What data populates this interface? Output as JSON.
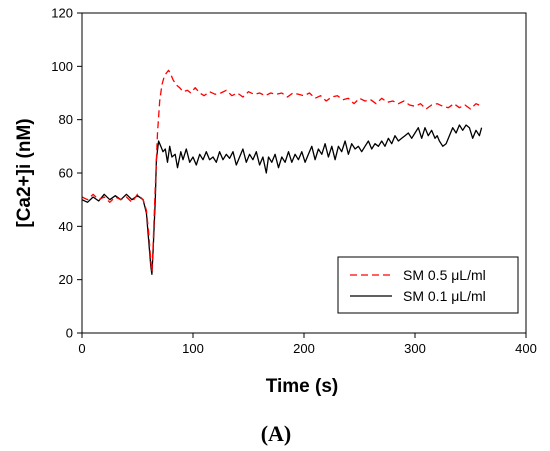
{
  "chart_data": {
    "type": "line",
    "xlabel": "Time (s)",
    "ylabel": "[Ca2+]i (nM)",
    "xlim": [
      0,
      400
    ],
    "ylim": [
      0,
      120
    ],
    "xticks": [
      0,
      100,
      200,
      300,
      400
    ],
    "yticks": [
      0,
      20,
      40,
      60,
      80,
      100,
      120
    ],
    "grid": false,
    "legend_position": "bottom-right",
    "panel_label": "(A)",
    "series": [
      {
        "name": "SM 0.5 μL/ml",
        "color": "#ff0000",
        "dash": "dashed",
        "points": [
          [
            0,
            51
          ],
          [
            5,
            50
          ],
          [
            10,
            52
          ],
          [
            15,
            50
          ],
          [
            20,
            51
          ],
          [
            25,
            49
          ],
          [
            30,
            51
          ],
          [
            35,
            50
          ],
          [
            40,
            51
          ],
          [
            45,
            49
          ],
          [
            50,
            52
          ],
          [
            55,
            50
          ],
          [
            58,
            46
          ],
          [
            60,
            38
          ],
          [
            62,
            27
          ],
          [
            63,
            23
          ],
          [
            64,
            32
          ],
          [
            66,
            55
          ],
          [
            68,
            75
          ],
          [
            70,
            87
          ],
          [
            72,
            93
          ],
          [
            74,
            96
          ],
          [
            76,
            97.5
          ],
          [
            78,
            98.5
          ],
          [
            80,
            97
          ],
          [
            82,
            95
          ],
          [
            85,
            93
          ],
          [
            88,
            92
          ],
          [
            91,
            90.5
          ],
          [
            95,
            91
          ],
          [
            98,
            90
          ],
          [
            102,
            92
          ],
          [
            106,
            90
          ],
          [
            110,
            89
          ],
          [
            115,
            90.5
          ],
          [
            120,
            89.5
          ],
          [
            125,
            90
          ],
          [
            130,
            91
          ],
          [
            135,
            89
          ],
          [
            140,
            90
          ],
          [
            145,
            88.5
          ],
          [
            150,
            90.5
          ],
          [
            155,
            89.5
          ],
          [
            160,
            90
          ],
          [
            165,
            89
          ],
          [
            170,
            90
          ],
          [
            175,
            89.5
          ],
          [
            180,
            90
          ],
          [
            185,
            88.5
          ],
          [
            190,
            90
          ],
          [
            195,
            89.5
          ],
          [
            200,
            89
          ],
          [
            205,
            90
          ],
          [
            210,
            88
          ],
          [
            215,
            89
          ],
          [
            220,
            87
          ],
          [
            225,
            88.5
          ],
          [
            230,
            89
          ],
          [
            235,
            87.5
          ],
          [
            240,
            88
          ],
          [
            245,
            86
          ],
          [
            250,
            88
          ],
          [
            255,
            87
          ],
          [
            260,
            87.5
          ],
          [
            265,
            86
          ],
          [
            270,
            88
          ],
          [
            275,
            86.5
          ],
          [
            280,
            87
          ],
          [
            285,
            86
          ],
          [
            290,
            87
          ],
          [
            295,
            85.5
          ],
          [
            300,
            85
          ],
          [
            305,
            86
          ],
          [
            310,
            84
          ],
          [
            315,
            85.5
          ],
          [
            320,
            86
          ],
          [
            325,
            85
          ],
          [
            330,
            84.5
          ],
          [
            335,
            86
          ],
          [
            340,
            84.5
          ],
          [
            345,
            85.5
          ],
          [
            350,
            84
          ],
          [
            355,
            86
          ],
          [
            360,
            85
          ]
        ]
      },
      {
        "name": "SM 0.1 μL/ml",
        "color": "#000000",
        "dash": "solid",
        "points": [
          [
            0,
            50
          ],
          [
            5,
            49
          ],
          [
            10,
            51
          ],
          [
            15,
            49.5
          ],
          [
            20,
            52
          ],
          [
            25,
            50
          ],
          [
            30,
            51.5
          ],
          [
            35,
            50
          ],
          [
            40,
            52
          ],
          [
            45,
            50
          ],
          [
            50,
            51.5
          ],
          [
            55,
            50
          ],
          [
            58,
            45
          ],
          [
            60,
            35
          ],
          [
            62,
            25
          ],
          [
            63,
            22
          ],
          [
            64,
            30
          ],
          [
            66,
            50
          ],
          [
            67,
            65
          ],
          [
            69,
            72
          ],
          [
            71,
            70
          ],
          [
            73,
            68
          ],
          [
            75,
            69
          ],
          [
            77,
            64
          ],
          [
            79,
            70
          ],
          [
            81,
            66
          ],
          [
            84,
            67
          ],
          [
            86,
            62
          ],
          [
            89,
            68
          ],
          [
            91,
            65
          ],
          [
            94,
            69
          ],
          [
            97,
            64
          ],
          [
            100,
            66
          ],
          [
            103,
            63
          ],
          [
            106,
            67
          ],
          [
            109,
            65
          ],
          [
            112,
            68
          ],
          [
            115,
            65
          ],
          [
            118,
            66
          ],
          [
            121,
            64
          ],
          [
            124,
            68
          ],
          [
            127,
            65
          ],
          [
            130,
            67
          ],
          [
            133,
            65.5
          ],
          [
            136,
            68
          ],
          [
            139,
            63
          ],
          [
            142,
            66
          ],
          [
            145,
            69
          ],
          [
            148,
            64
          ],
          [
            151,
            67
          ],
          [
            154,
            65
          ],
          [
            157,
            68
          ],
          [
            160,
            63
          ],
          [
            163,
            66
          ],
          [
            166,
            60
          ],
          [
            168,
            66
          ],
          [
            171,
            64
          ],
          [
            174,
            67
          ],
          [
            177,
            62
          ],
          [
            180,
            66
          ],
          [
            183,
            64
          ],
          [
            186,
            68
          ],
          [
            189,
            64
          ],
          [
            192,
            67
          ],
          [
            195,
            65
          ],
          [
            198,
            68
          ],
          [
            201,
            64
          ],
          [
            204,
            67
          ],
          [
            207,
            70
          ],
          [
            210,
            65
          ],
          [
            213,
            69
          ],
          [
            216,
            67
          ],
          [
            219,
            71
          ],
          [
            222,
            66
          ],
          [
            225,
            70
          ],
          [
            228,
            65
          ],
          [
            231,
            70
          ],
          [
            234,
            68
          ],
          [
            237,
            72
          ],
          [
            240,
            67
          ],
          [
            243,
            71
          ],
          [
            246,
            69
          ],
          [
            249,
            70
          ],
          [
            252,
            68
          ],
          [
            255,
            70
          ],
          [
            258,
            72
          ],
          [
            261,
            69
          ],
          [
            264,
            71
          ],
          [
            267,
            70
          ],
          [
            270,
            72
          ],
          [
            273,
            70
          ],
          [
            276,
            73
          ],
          [
            279,
            71
          ],
          [
            282,
            74
          ],
          [
            285,
            72
          ],
          [
            288,
            73
          ],
          [
            291,
            74
          ],
          [
            294,
            75
          ],
          [
            297,
            73
          ],
          [
            300,
            75
          ],
          [
            303,
            77
          ],
          [
            306,
            73
          ],
          [
            309,
            77
          ],
          [
            312,
            74
          ],
          [
            315,
            76
          ],
          [
            318,
            73
          ],
          [
            320,
            74
          ],
          [
            322,
            72
          ],
          [
            325,
            70
          ],
          [
            328,
            71
          ],
          [
            331,
            74
          ],
          [
            334,
            77
          ],
          [
            337,
            75
          ],
          [
            340,
            78
          ],
          [
            343,
            76
          ],
          [
            346,
            78
          ],
          [
            349,
            77
          ],
          [
            352,
            73
          ],
          [
            355,
            76
          ],
          [
            358,
            74
          ],
          [
            360,
            77
          ]
        ]
      }
    ]
  }
}
